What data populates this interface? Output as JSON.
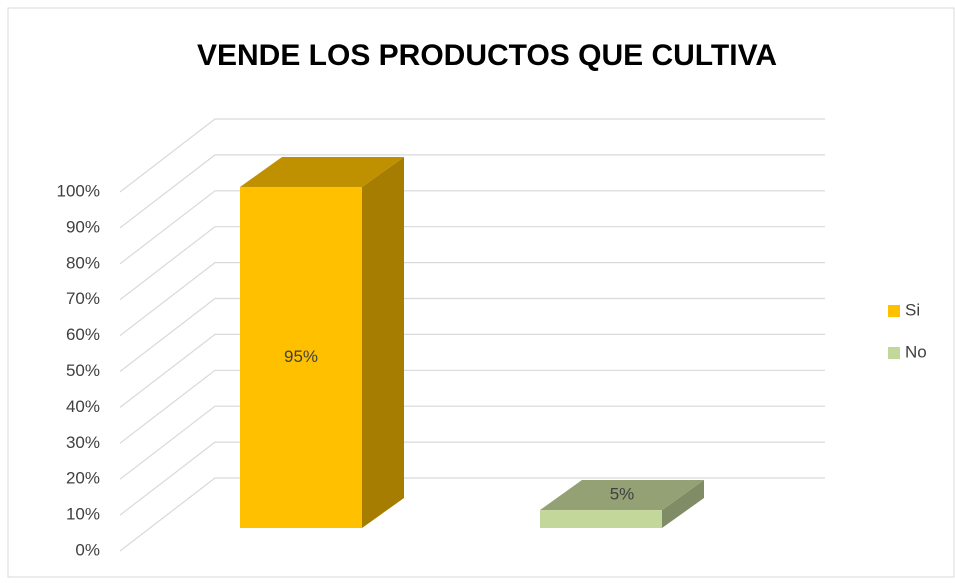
{
  "chart_data": {
    "type": "bar3d",
    "title": "VENDE LOS PRODUCTOS QUE CULTIVA",
    "categories": [
      null
    ],
    "series": [
      {
        "name": "Si",
        "color": "#ffc000",
        "values": [
          95
        ],
        "value_labels": [
          "95%"
        ]
      },
      {
        "name": "No",
        "color": "#c4d79b",
        "values": [
          5
        ],
        "value_labels": [
          "5%"
        ]
      }
    ],
    "ylim": [
      0,
      100
    ],
    "yticks": [
      {
        "value": 0,
        "label": "0%"
      },
      {
        "value": 10,
        "label": "10%"
      },
      {
        "value": 20,
        "label": "20%"
      },
      {
        "value": 30,
        "label": "30%"
      },
      {
        "value": 40,
        "label": "40%"
      },
      {
        "value": 50,
        "label": "50%"
      },
      {
        "value": 60,
        "label": "60%"
      },
      {
        "value": 70,
        "label": "70%"
      },
      {
        "value": 80,
        "label": "80%"
      },
      {
        "value": 90,
        "label": "90%"
      },
      {
        "value": 100,
        "label": "100%"
      }
    ],
    "grid": true,
    "legend": "right"
  }
}
